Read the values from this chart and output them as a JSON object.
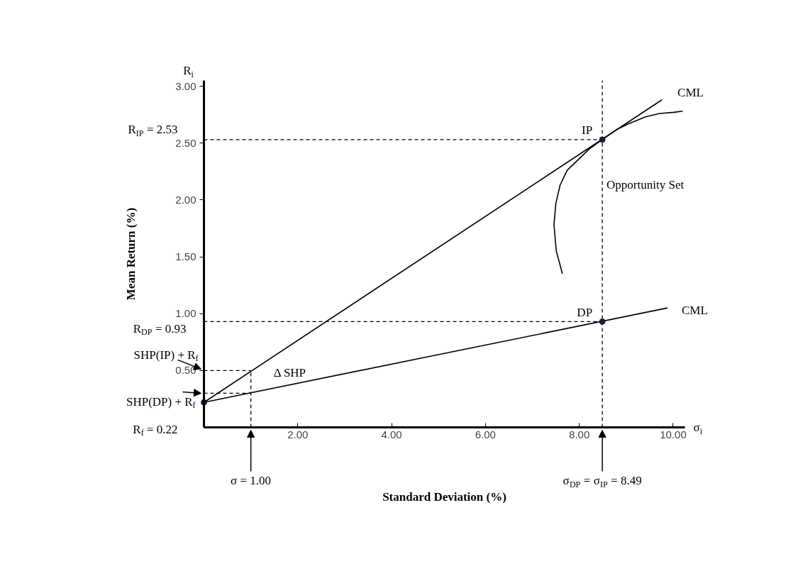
{
  "chart_data": {
    "type": "line",
    "xlabel": "Standard Deviation (%)",
    "ylabel": "Mean Return (%)",
    "xlim": [
      0,
      10.25
    ],
    "ylim": [
      0,
      3.05
    ],
    "xticks": [
      {
        "value": 2,
        "label": "2.00"
      },
      {
        "value": 4,
        "label": "4.00"
      },
      {
        "value": 6,
        "label": "6.00"
      },
      {
        "value": 8,
        "label": "8.00"
      },
      {
        "value": 10,
        "label": "10.00"
      }
    ],
    "yticks": [
      {
        "value": 0.5,
        "label": "0.50"
      },
      {
        "value": 1,
        "label": "1.00"
      },
      {
        "value": 1.5,
        "label": "1.50"
      },
      {
        "value": 2,
        "label": "2.00"
      },
      {
        "value": 2.5,
        "label": "2.50"
      },
      {
        "value": 3,
        "label": "3.00"
      }
    ],
    "marker": "none",
    "line_style": "solid",
    "series": [
      {
        "name": "CML",
        "color": "#000000",
        "x": [
          0,
          9.76
        ],
        "values": [
          0.22,
          2.88
        ]
      },
      {
        "name": "CML",
        "color": "#000000",
        "x": [
          0,
          9.88
        ],
        "values": [
          0.22,
          1.05
        ]
      },
      {
        "name": "Opportunity Set",
        "color": "#000000",
        "x": [
          7.64,
          7.51,
          7.46,
          7.5,
          7.59,
          7.74,
          7.94,
          8.22,
          8.49,
          8.8,
          9.05,
          9.41,
          9.71,
          10.01,
          10.2
        ],
        "values": [
          1.35,
          1.55,
          1.78,
          1.97,
          2.13,
          2.26,
          2.34,
          2.45,
          2.53,
          2.62,
          2.67,
          2.73,
          2.76,
          2.77,
          2.78
        ]
      },
      {
        "color": "#000000",
        "line_style": "dashed",
        "x": [
          0,
          8.49
        ],
        "values": [
          2.53,
          2.53
        ]
      },
      {
        "color": "#000000",
        "line_style": "dashed",
        "x": [
          0,
          8.49
        ],
        "values": [
          0.93,
          0.93
        ]
      },
      {
        "color": "#000000",
        "line_style": "dashed",
        "x": [
          8.49,
          8.49
        ],
        "values": [
          0,
          3.05
        ]
      },
      {
        "color": "#000000",
        "line_style": "dashed",
        "x": [
          0,
          1.0
        ],
        "values": [
          0.5,
          0.5
        ]
      },
      {
        "color": "#000000",
        "line_style": "dashed",
        "x": [
          0,
          1.0
        ],
        "values": [
          0.3,
          0.3
        ]
      },
      {
        "color": "#000000",
        "line_style": "dashed",
        "x": [
          1.0,
          1.0
        ],
        "values": [
          0,
          0.5
        ]
      },
      {
        "type": "scatter",
        "marker": "circle",
        "color": "#1c1c3a",
        "x": [
          0,
          8.49,
          8.49
        ],
        "values": [
          0.22,
          2.53,
          0.93
        ]
      }
    ],
    "annotations": [
      "R$_{i}$",
      "σ$_{i}$",
      {
        "text": "R$_{IP}$ = 2.53",
        "x": 0,
        "y": 2.53
      },
      {
        "text": "IP",
        "x": 8.49,
        "y": 2.53
      },
      {
        "text": "DP",
        "x": 8.49,
        "y": 0.93
      },
      {
        "text": "R$_{DP}$ = 0.93",
        "x": 0,
        "y": 0.93
      },
      {
        "text": "SHP(IP) + R$_{f}$",
        "x": 0,
        "y": 0.5
      },
      {
        "text": "SHP(DP) + R$_{f}$",
        "x": 0,
        "y": 0.3
      },
      {
        "text": "R$_{f}$ = 0.22",
        "x": 0,
        "y": 0.22
      },
      {
        "text": "Δ SHP",
        "x": 1.0,
        "y": 0.4
      },
      {
        "text": "σ = 1.00",
        "x": 1.0,
        "y": 0
      },
      {
        "text": "σ$_{DP}$ = σ$_{IP}$ = 8.49",
        "x": 8.49,
        "y": 0
      }
    ]
  }
}
